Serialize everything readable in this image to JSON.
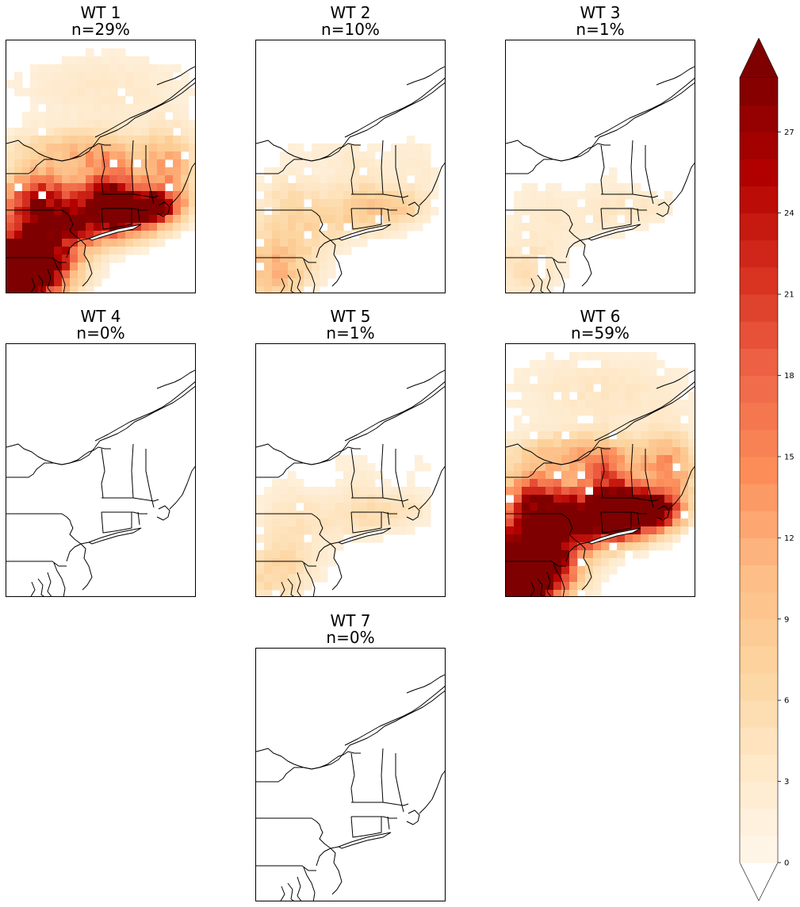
{
  "chart_data": {
    "type": "filled-contour-map-grid",
    "panels": [
      {
        "id": "wt1",
        "title": "WT 1",
        "subtitle": "n=29%",
        "intensity": 1.0
      },
      {
        "id": "wt2",
        "title": "WT 2",
        "subtitle": "n=10%",
        "intensity": 0.22
      },
      {
        "id": "wt3",
        "title": "WT 3",
        "subtitle": "n=1%",
        "intensity": 0.1
      },
      {
        "id": "wt4",
        "title": "WT 4",
        "subtitle": "n=0%",
        "intensity": 0.0
      },
      {
        "id": "wt5",
        "title": "WT 5",
        "subtitle": "n=1%",
        "intensity": 0.14
      },
      {
        "id": "wt6",
        "title": "WT 6",
        "subtitle": "n=59%",
        "intensity": 1.15
      },
      {
        "id": "wt7",
        "title": "WT 7",
        "subtitle": "n=0%",
        "intensity": 0.0
      }
    ],
    "colorbar": {
      "min": 0,
      "max": 29,
      "levels": 29,
      "extend": "both",
      "ticks": [
        0,
        3,
        6,
        9,
        12,
        15,
        18,
        21,
        24,
        27
      ],
      "colormap": "OrRd",
      "colors": [
        "#fff7ec",
        "#fee8c8",
        "#fdd49e",
        "#fdbb84",
        "#fc8d59",
        "#ef6548",
        "#d7301f",
        "#b30000",
        "#7f0000"
      ]
    },
    "grid": "off",
    "legend": "colorbar-right"
  }
}
